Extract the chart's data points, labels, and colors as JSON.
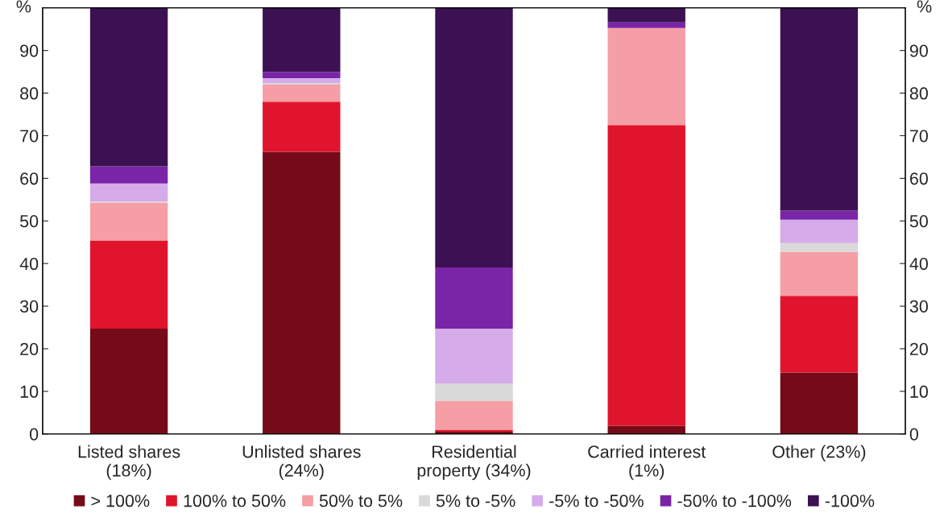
{
  "chart_data": {
    "type": "bar",
    "stacked": true,
    "categories": [
      "Listed shares\n(18%)",
      "Unlisted shares\n(24%)",
      "Residential\nproperty (34%)",
      "Carried interest\n(1%)",
      "Other (23%)"
    ],
    "series": [
      {
        "name": "> 100%",
        "color": "#750b18",
        "values": [
          24.7,
          66.2,
          0.5,
          1.9,
          14.4
        ]
      },
      {
        "name": "100% to 50%",
        "color": "#e0142d",
        "values": [
          20.7,
          11.8,
          0.5,
          70.6,
          18.0
        ]
      },
      {
        "name": "50% to 5%",
        "color": "#f59ea6",
        "values": [
          8.9,
          4.0,
          6.8,
          22.8,
          10.3
        ]
      },
      {
        "name": "5% to -5%",
        "color": "#d9d9d9",
        "values": [
          0.3,
          0.4,
          4.0,
          0,
          2.1
        ]
      },
      {
        "name": "-5% to -50%",
        "color": "#d5abe9",
        "values": [
          4.2,
          1.1,
          12.9,
          0,
          5.5
        ]
      },
      {
        "name": "-50% to -100%",
        "color": "#7a24a8",
        "values": [
          4.0,
          1.5,
          14.4,
          1.3,
          2.1
        ]
      },
      {
        "name": "-100%",
        "color": "#3c1152",
        "values": [
          37.2,
          15.0,
          60.9,
          3.4,
          47.6
        ]
      }
    ],
    "ylabel": "%",
    "y2label": "%",
    "ylim": [
      0,
      100
    ],
    "yticks": [
      0,
      10,
      20,
      30,
      40,
      50,
      60,
      70,
      80,
      90
    ],
    "y2lim": [
      0,
      100
    ],
    "y2ticks": [
      0,
      10,
      20,
      30,
      40,
      50,
      60,
      70,
      80,
      90
    ],
    "grid": false,
    "legend": "bottom"
  }
}
